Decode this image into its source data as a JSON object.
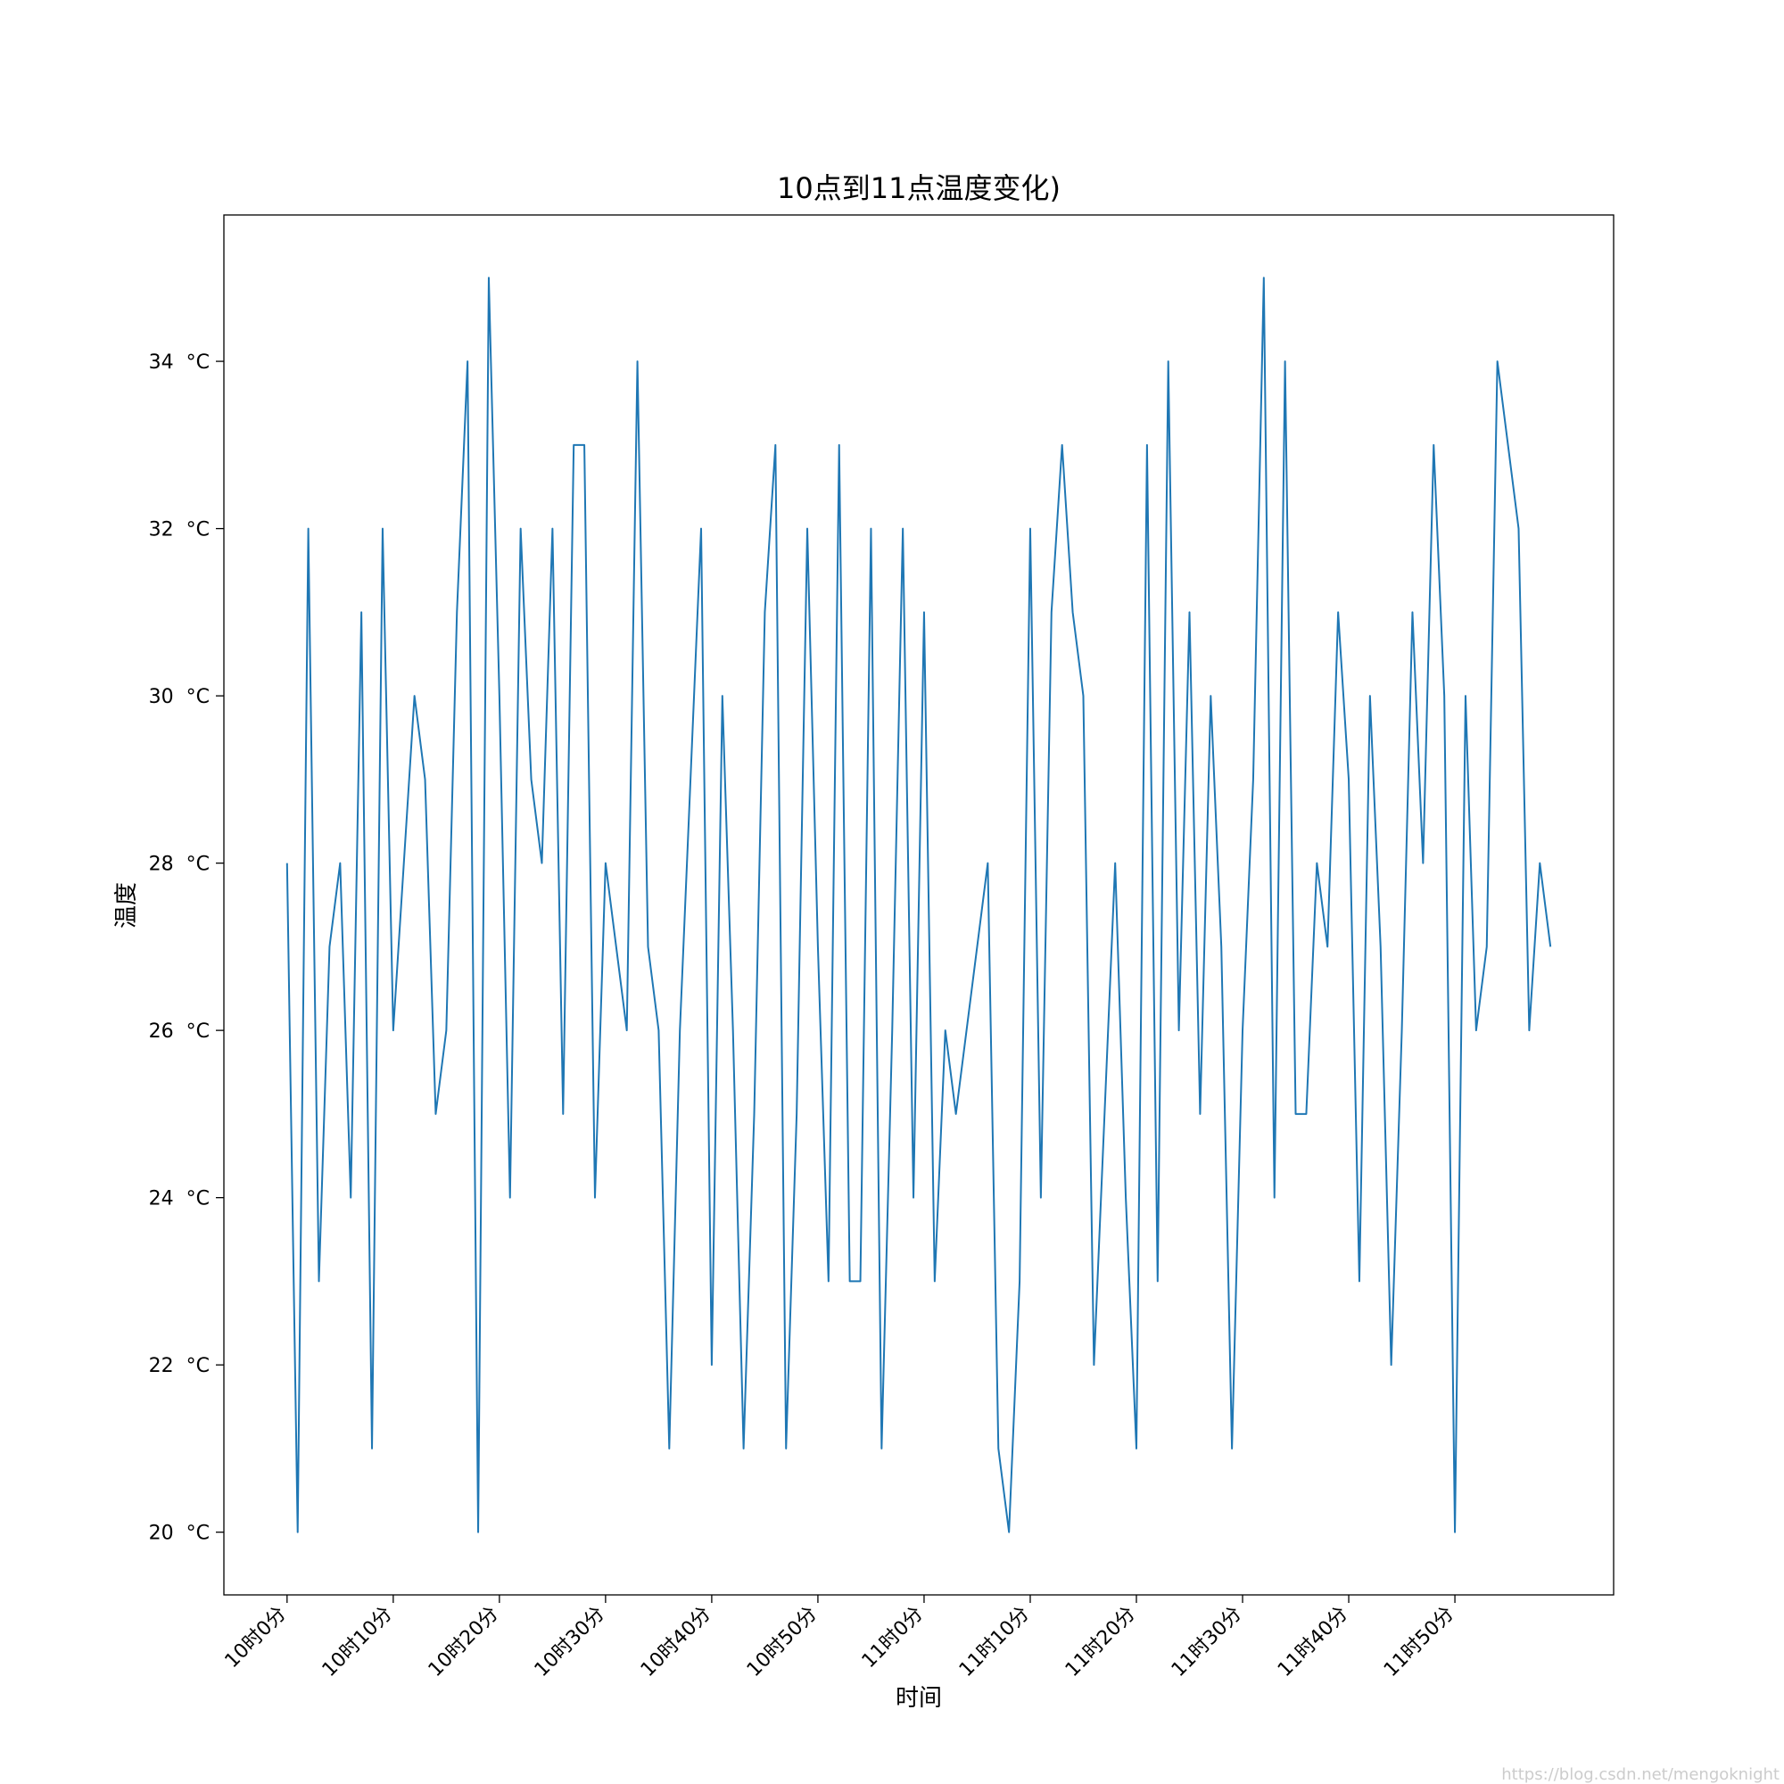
{
  "chart_data": {
    "type": "line",
    "title": "10点到11点温度变化)",
    "x_label": "时间",
    "y_label": "温度",
    "categories": [
      "10时0分",
      null,
      null,
      null,
      null,
      null,
      null,
      null,
      null,
      null,
      "10时10分",
      null,
      null,
      null,
      null,
      null,
      null,
      null,
      null,
      null,
      "10时20分",
      null,
      null,
      null,
      null,
      null,
      null,
      null,
      null,
      null,
      "10时30分",
      null,
      null,
      null,
      null,
      null,
      null,
      null,
      null,
      null,
      "10时40分",
      null,
      null,
      null,
      null,
      null,
      null,
      null,
      null,
      null,
      "10时50分",
      null,
      null,
      null,
      null,
      null,
      null,
      null,
      null,
      null,
      "11时0分",
      null,
      null,
      null,
      null,
      null,
      null,
      null,
      null,
      null,
      "11时10分",
      null,
      null,
      null,
      null,
      null,
      null,
      null,
      null,
      null,
      "11时20分",
      null,
      null,
      null,
      null,
      null,
      null,
      null,
      null,
      null,
      "11时30分",
      null,
      null,
      null,
      null,
      null,
      null,
      null,
      null,
      null,
      "11时40分",
      null,
      null,
      null,
      null,
      null,
      null,
      null,
      null,
      null,
      "11时50分",
      null,
      null,
      null,
      null,
      null,
      null,
      null,
      null,
      null
    ],
    "series": [
      {
        "color": "#1f77b4",
        "values": [
          28,
          20,
          32,
          23,
          27,
          28,
          24,
          31,
          21,
          32,
          26,
          28,
          30,
          29,
          25,
          26,
          31,
          34,
          20,
          35,
          30,
          24,
          32,
          29,
          28,
          32,
          25,
          33,
          33,
          24,
          28,
          27,
          26,
          34,
          27,
          26,
          21,
          26,
          29,
          32,
          22,
          30,
          26,
          21,
          25,
          31,
          33,
          21,
          25,
          32,
          27,
          23,
          33,
          23,
          23,
          32,
          21,
          26,
          32,
          24,
          31,
          23,
          26,
          25,
          26,
          27,
          28,
          21,
          20,
          23,
          32,
          24,
          31,
          33,
          31,
          30,
          22,
          25,
          28,
          24,
          21,
          33,
          23,
          34,
          26,
          31,
          25,
          30,
          27,
          21,
          26,
          29,
          35,
          24,
          34,
          25,
          25,
          28,
          27,
          31,
          29,
          23,
          30,
          27,
          22,
          26,
          31,
          28,
          33,
          30,
          20,
          30,
          26,
          27,
          34,
          33,
          32,
          26,
          28,
          27
        ]
      }
    ],
    "ylim": [
      19.25,
      35.75
    ],
    "yticks": [
      {
        "value": 20,
        "label": "20  °C"
      },
      {
        "value": 22,
        "label": "22  °C"
      },
      {
        "value": 24,
        "label": "24  °C"
      },
      {
        "value": 26,
        "label": "26  °C"
      },
      {
        "value": 28,
        "label": "28  °C"
      },
      {
        "value": 30,
        "label": "30  °C"
      },
      {
        "value": 32,
        "label": "32  °C"
      },
      {
        "value": 34,
        "label": "34  °C"
      }
    ],
    "grid": false
  },
  "watermark": "https://blog.csdn.net/mengoknight"
}
